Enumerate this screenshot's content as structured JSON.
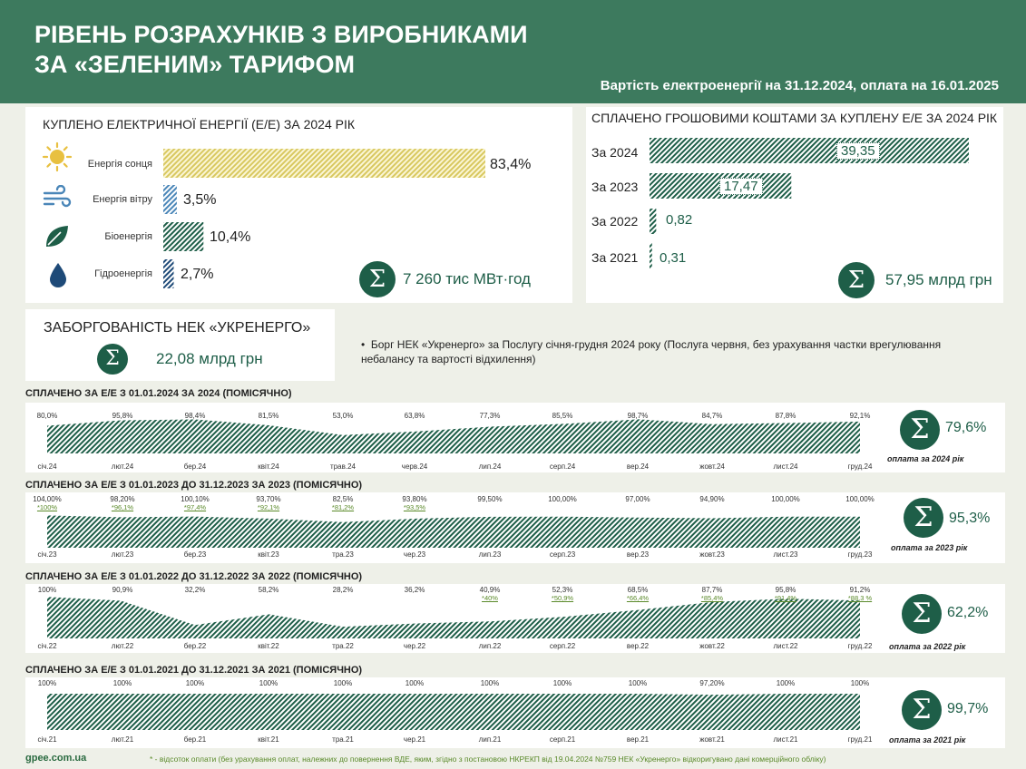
{
  "header": {
    "title_line1": "РІВЕНЬ РОЗРАХУНКІВ З ВИРОБНИКАМИ",
    "title_line2": "ЗА «ЗЕЛЕНИМ» ТАРИФОМ",
    "subtitle": "Вартість електроенергії на 31.12.2024, оплата на 16.01.2025"
  },
  "purchased": {
    "title": "КУПЛЕНО ЕЛЕКТРИЧНОЇ ЕНЕРГІЇ (Е/Е) ЗА 2024 РІК",
    "total": "7 260 тис МВт·год",
    "items": [
      {
        "label": "Енергія сонця",
        "value": 83.4,
        "text": "83,4%",
        "icon": "sun-icon",
        "color": "#e8d870"
      },
      {
        "label": "Енергія вітру",
        "value": 3.5,
        "text": "3,5%",
        "icon": "wind-icon",
        "color": "#4a86b8"
      },
      {
        "label": "Біоенергія",
        "value": 10.4,
        "text": "10,4%",
        "icon": "leaf-icon",
        "color": "#1e5e48"
      },
      {
        "label": "Гідроенергія",
        "value": 2.7,
        "text": "2,7%",
        "icon": "drop-icon",
        "color": "#1e4a78"
      }
    ]
  },
  "paid": {
    "title": "СПЛАЧЕНО ГРОШОВИМИ КОШТАМИ ЗА КУПЛЕНУ Е/Е ЗА 2024 РІК",
    "total": "57,95 млрд грн",
    "items": [
      {
        "label": "За 2024",
        "value": 39.35,
        "text": "39,35"
      },
      {
        "label": "За 2023",
        "value": 17.47,
        "text": "17,47"
      },
      {
        "label": "За 2022",
        "value": 0.82,
        "text": "0,82"
      },
      {
        "label": "За 2021",
        "value": 0.31,
        "text": "0,31"
      }
    ]
  },
  "debt": {
    "title": "ЗАБОРГОВАНІСТЬ НЕК «УКРЕНЕРГО»",
    "value": "22,08 млрд грн",
    "note": "Борг НЕК «Укренерго» за Послугу січня-грудня 2024 року (Послуга червня, без урахування частки врегулювання небалансу та вартості відхилення)"
  },
  "chart_data": [
    {
      "type": "area",
      "title": "СПЛАЧЕНО ЗА Е/Е З 01.01.2024 ЗА 2024  (ПОМІСЯЧНО)",
      "categories": [
        "січ.24",
        "лют.24",
        "бер.24",
        "квіт.24",
        "трав.24",
        "черв.24",
        "лип.24",
        "серп.24",
        "вер.24",
        "жовт.24",
        "лист.24",
        "груд.24"
      ],
      "values": [
        80.0,
        95.8,
        98.4,
        81.5,
        53.0,
        63.8,
        77.3,
        85.5,
        98.7,
        84.7,
        87.8,
        92.1
      ],
      "labels": [
        "80,0%",
        "95,8%",
        "98,4%",
        "81,5%",
        "53,0%",
        "63,8%",
        "77,3%",
        "85,5%",
        "98,7%",
        "84,7%",
        "87,8%",
        "92,1%"
      ],
      "corrected": [
        "",
        "",
        "",
        "",
        "",
        "",
        "",
        "",
        "",
        "",
        "",
        ""
      ],
      "total": "79,6%",
      "total_note": "оплата за 2024 рік"
    },
    {
      "type": "area",
      "title": "СПЛАЧЕНО ЗА Е/Е З 01.01.2023 ДО 31.12.2023 ЗА 2023  (ПОМІСЯЧНО)",
      "categories": [
        "січ.23",
        "лют.23",
        "бер.23",
        "квіт.23",
        "тра.23",
        "чер.23",
        "лип.23",
        "серп.23",
        "вер.23",
        "жовт.23",
        "лист.23",
        "груд.23"
      ],
      "values": [
        104.0,
        98.2,
        100.1,
        93.7,
        82.5,
        93.8,
        99.5,
        100.0,
        97.0,
        94.9,
        100.0,
        100.0
      ],
      "labels": [
        "104,00%",
        "98,20%",
        "100,10%",
        "93,70%",
        "82,5%",
        "93,80%",
        "99,50%",
        "100,00%",
        "97,00%",
        "94,90%",
        "100,00%",
        "100,00%"
      ],
      "corrected": [
        "*100%",
        "*96,1%",
        "*97,4%",
        "*92,1%",
        "*81,2%",
        "*93,5%",
        "",
        "",
        "",
        "",
        "",
        ""
      ],
      "total": "95,3%",
      "total_note": "оплата за 2023 рік"
    },
    {
      "type": "area",
      "title": "СПЛАЧЕНО ЗА Е/Е З 01.01.2022 ДО 31.12.2022 ЗА 2022 (ПОМІСЯЧНО)",
      "categories": [
        "січ.22",
        "лют.22",
        "бер.22",
        "квіт.22",
        "тра.22",
        "чер.22",
        "лип.22",
        "серп.22",
        "вер.22",
        "жовт.22",
        "лист.22",
        "груд.22"
      ],
      "values": [
        100,
        90.9,
        32.2,
        58.2,
        28.2,
        36.2,
        40.9,
        52.3,
        68.5,
        87.7,
        95.8,
        91.2
      ],
      "labels": [
        "100%",
        "90,9%",
        "32,2%",
        "58,2%",
        "28,2%",
        "36,2%",
        "40,9%",
        "52,3%",
        "68,5%",
        "87,7%",
        "95,8%",
        "91,2%"
      ],
      "corrected": [
        "",
        "",
        "",
        "",
        "",
        "",
        "*40%",
        "*50,9%",
        "*66,4%",
        "*85,4%",
        "*91,4%",
        "*88,3 %"
      ],
      "total": "62,2%",
      "total_note": "оплата за 2022 рік"
    },
    {
      "type": "area",
      "title": "СПЛАЧЕНО ЗА Е/Е З 01.01.2021 ДО 31.12.2021 ЗА 2021 (ПОМІСЯЧНО)",
      "categories": [
        "січ.21",
        "лют.21",
        "бер.21",
        "квіт.21",
        "тра.21",
        "чер.21",
        "лип.21",
        "серп.21",
        "вер.21",
        "жовт.21",
        "лист.21",
        "груд.21"
      ],
      "values": [
        100,
        100,
        100,
        100,
        100,
        100,
        100,
        100,
        100,
        97.2,
        100,
        100
      ],
      "labels": [
        "100%",
        "100%",
        "100%",
        "100%",
        "100%",
        "100%",
        "100%",
        "100%",
        "100%",
        "97,20%",
        "100%",
        "100%"
      ],
      "corrected": [
        "",
        "",
        "",
        "",
        "",
        "",
        "",
        "",
        "",
        "",
        "",
        ""
      ],
      "total": "99,7%",
      "total_note": "оплата за 2021 рік"
    }
  ],
  "footer": {
    "site": "gpee.com.ua",
    "note": "* - відсоток оплати (без урахування оплат, належних до повернення ВДЕ, яким, згідно з постановою НКРЕКП від 19.04.2024  №759 НЕК «Укренерго» відкоригувано дані комерційного обліку)"
  },
  "colors": {
    "header": "#3d7a5e",
    "accent": "#1e5e48",
    "corrected": "#5a8a2a"
  }
}
